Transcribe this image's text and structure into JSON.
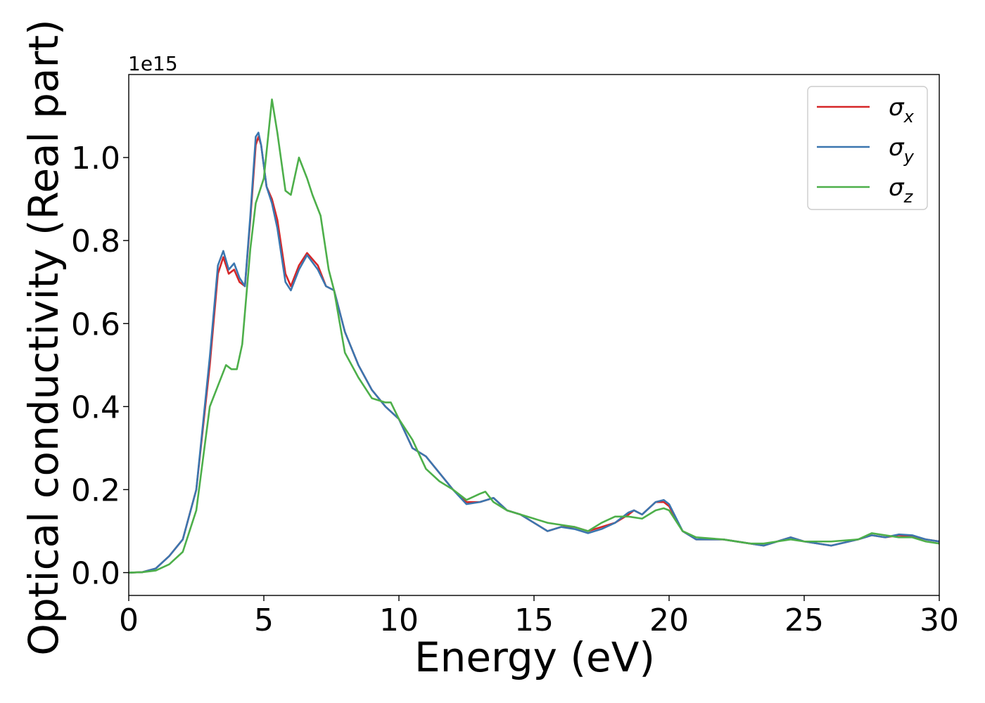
{
  "chart_data": {
    "type": "line",
    "title": "",
    "xlabel": "Energy (eV)",
    "ylabel": "Optical conductivity (Real part)",
    "y_offset_label": "1e15",
    "xlim": [
      0,
      30
    ],
    "ylim": [
      -0.055,
      1.2
    ],
    "xticks": [
      0,
      5,
      10,
      15,
      20,
      25,
      30
    ],
    "xtick_labels": [
      "0",
      "5",
      "10",
      "15",
      "20",
      "25",
      "30"
    ],
    "yticks": [
      0.0,
      0.2,
      0.4,
      0.6,
      0.8,
      1.0
    ],
    "ytick_labels": [
      "0.0",
      "0.2",
      "0.4",
      "0.6",
      "0.8",
      "1.0"
    ],
    "grid": false,
    "legend_position": "top-right",
    "series": [
      {
        "name": "σ_x",
        "label_base": "σ",
        "label_sub": "x",
        "color": "#d62728",
        "points": [
          [
            0,
            0
          ],
          [
            0.5,
            0.001
          ],
          [
            1,
            0.01
          ],
          [
            1.5,
            0.04
          ],
          [
            2,
            0.08
          ],
          [
            2.5,
            0.2
          ],
          [
            3,
            0.5
          ],
          [
            3.3,
            0.72
          ],
          [
            3.5,
            0.76
          ],
          [
            3.7,
            0.72
          ],
          [
            3.9,
            0.73
          ],
          [
            4.1,
            0.7
          ],
          [
            4.3,
            0.69
          ],
          [
            4.5,
            0.85
          ],
          [
            4.7,
            1.03
          ],
          [
            4.8,
            1.05
          ],
          [
            4.9,
            1.03
          ],
          [
            5.1,
            0.93
          ],
          [
            5.3,
            0.9
          ],
          [
            5.5,
            0.85
          ],
          [
            5.8,
            0.72
          ],
          [
            6,
            0.69
          ],
          [
            6.3,
            0.74
          ],
          [
            6.6,
            0.77
          ],
          [
            7,
            0.74
          ],
          [
            7.3,
            0.69
          ],
          [
            7.6,
            0.68
          ],
          [
            8,
            0.58
          ],
          [
            8.5,
            0.5
          ],
          [
            9,
            0.44
          ],
          [
            9.5,
            0.4
          ],
          [
            10,
            0.37
          ],
          [
            10.5,
            0.3
          ],
          [
            11,
            0.28
          ],
          [
            11.5,
            0.24
          ],
          [
            12,
            0.2
          ],
          [
            12.5,
            0.17
          ],
          [
            13,
            0.17
          ],
          [
            13.5,
            0.18
          ],
          [
            14,
            0.15
          ],
          [
            14.5,
            0.14
          ],
          [
            15,
            0.12
          ],
          [
            15.5,
            0.1
          ],
          [
            16,
            0.11
          ],
          [
            16.5,
            0.11
          ],
          [
            17,
            0.1
          ],
          [
            17.5,
            0.11
          ],
          [
            18,
            0.12
          ],
          [
            18.5,
            0.14
          ],
          [
            18.7,
            0.15
          ],
          [
            19,
            0.14
          ],
          [
            19.5,
            0.17
          ],
          [
            19.8,
            0.17
          ],
          [
            20,
            0.16
          ],
          [
            20.5,
            0.1
          ],
          [
            21,
            0.08
          ],
          [
            22,
            0.08
          ],
          [
            23,
            0.07
          ],
          [
            23.5,
            0.065
          ],
          [
            24,
            0.075
          ],
          [
            24.5,
            0.085
          ],
          [
            25,
            0.075
          ],
          [
            26,
            0.065
          ],
          [
            27,
            0.08
          ],
          [
            27.5,
            0.09
          ],
          [
            28,
            0.085
          ],
          [
            28.5,
            0.09
          ],
          [
            29,
            0.088
          ],
          [
            29.5,
            0.08
          ],
          [
            30,
            0.075
          ]
        ]
      },
      {
        "name": "σ_y",
        "label_base": "σ",
        "label_sub": "y",
        "color": "#3b76af",
        "points": [
          [
            0,
            0
          ],
          [
            0.5,
            0.001
          ],
          [
            1,
            0.01
          ],
          [
            1.5,
            0.04
          ],
          [
            2,
            0.08
          ],
          [
            2.5,
            0.2
          ],
          [
            3,
            0.52
          ],
          [
            3.3,
            0.74
          ],
          [
            3.5,
            0.775
          ],
          [
            3.7,
            0.73
          ],
          [
            3.9,
            0.745
          ],
          [
            4.1,
            0.71
          ],
          [
            4.3,
            0.69
          ],
          [
            4.5,
            0.86
          ],
          [
            4.7,
            1.05
          ],
          [
            4.8,
            1.06
          ],
          [
            4.9,
            1.03
          ],
          [
            5.1,
            0.93
          ],
          [
            5.3,
            0.89
          ],
          [
            5.5,
            0.83
          ],
          [
            5.8,
            0.7
          ],
          [
            6,
            0.68
          ],
          [
            6.3,
            0.73
          ],
          [
            6.6,
            0.765
          ],
          [
            7,
            0.73
          ],
          [
            7.3,
            0.69
          ],
          [
            7.6,
            0.68
          ],
          [
            8,
            0.58
          ],
          [
            8.5,
            0.5
          ],
          [
            9,
            0.44
          ],
          [
            9.5,
            0.4
          ],
          [
            10,
            0.37
          ],
          [
            10.5,
            0.3
          ],
          [
            11,
            0.28
          ],
          [
            11.5,
            0.24
          ],
          [
            12,
            0.2
          ],
          [
            12.5,
            0.165
          ],
          [
            13,
            0.17
          ],
          [
            13.5,
            0.18
          ],
          [
            14,
            0.15
          ],
          [
            14.5,
            0.14
          ],
          [
            15,
            0.12
          ],
          [
            15.5,
            0.1
          ],
          [
            16,
            0.11
          ],
          [
            16.5,
            0.105
          ],
          [
            17,
            0.095
          ],
          [
            17.5,
            0.105
          ],
          [
            18,
            0.12
          ],
          [
            18.5,
            0.145
          ],
          [
            18.7,
            0.15
          ],
          [
            19,
            0.14
          ],
          [
            19.5,
            0.17
          ],
          [
            19.8,
            0.175
          ],
          [
            20,
            0.165
          ],
          [
            20.5,
            0.1
          ],
          [
            21,
            0.08
          ],
          [
            22,
            0.08
          ],
          [
            23,
            0.07
          ],
          [
            23.5,
            0.065
          ],
          [
            24,
            0.075
          ],
          [
            24.5,
            0.085
          ],
          [
            25,
            0.075
          ],
          [
            26,
            0.065
          ],
          [
            27,
            0.08
          ],
          [
            27.5,
            0.09
          ],
          [
            28,
            0.085
          ],
          [
            28.5,
            0.092
          ],
          [
            29,
            0.09
          ],
          [
            29.5,
            0.08
          ],
          [
            30,
            0.075
          ]
        ]
      },
      {
        "name": "σ_z",
        "label_base": "σ",
        "label_sub": "z",
        "color": "#4daf4a",
        "points": [
          [
            0,
            0
          ],
          [
            0.5,
            0.001
          ],
          [
            1,
            0.005
          ],
          [
            1.5,
            0.02
          ],
          [
            2,
            0.05
          ],
          [
            2.5,
            0.15
          ],
          [
            3,
            0.4
          ],
          [
            3.3,
            0.45
          ],
          [
            3.6,
            0.5
          ],
          [
            3.8,
            0.49
          ],
          [
            4,
            0.49
          ],
          [
            4.2,
            0.55
          ],
          [
            4.5,
            0.78
          ],
          [
            4.7,
            0.89
          ],
          [
            5,
            0.95
          ],
          [
            5.3,
            1.14
          ],
          [
            5.5,
            1.06
          ],
          [
            5.8,
            0.92
          ],
          [
            6,
            0.91
          ],
          [
            6.3,
            1.0
          ],
          [
            6.6,
            0.95
          ],
          [
            6.8,
            0.91
          ],
          [
            7.1,
            0.86
          ],
          [
            7.4,
            0.73
          ],
          [
            7.6,
            0.68
          ],
          [
            8,
            0.53
          ],
          [
            8.5,
            0.47
          ],
          [
            9,
            0.42
          ],
          [
            9.5,
            0.41
          ],
          [
            9.7,
            0.41
          ],
          [
            10,
            0.37
          ],
          [
            10.5,
            0.32
          ],
          [
            11,
            0.25
          ],
          [
            11.5,
            0.22
          ],
          [
            12,
            0.2
          ],
          [
            12.5,
            0.175
          ],
          [
            13,
            0.19
          ],
          [
            13.2,
            0.195
          ],
          [
            13.5,
            0.17
          ],
          [
            14,
            0.15
          ],
          [
            14.5,
            0.14
          ],
          [
            15,
            0.13
          ],
          [
            15.5,
            0.12
          ],
          [
            16,
            0.115
          ],
          [
            16.5,
            0.11
          ],
          [
            17,
            0.1
          ],
          [
            17.5,
            0.12
          ],
          [
            18,
            0.135
          ],
          [
            18.5,
            0.135
          ],
          [
            19,
            0.13
          ],
          [
            19.5,
            0.15
          ],
          [
            19.8,
            0.155
          ],
          [
            20,
            0.15
          ],
          [
            20.5,
            0.1
          ],
          [
            21,
            0.085
          ],
          [
            22,
            0.08
          ],
          [
            23,
            0.07
          ],
          [
            23.5,
            0.07
          ],
          [
            24,
            0.075
          ],
          [
            24.5,
            0.08
          ],
          [
            25,
            0.075
          ],
          [
            25.5,
            0.075
          ],
          [
            26,
            0.075
          ],
          [
            27,
            0.08
          ],
          [
            27.5,
            0.095
          ],
          [
            28,
            0.09
          ],
          [
            28.5,
            0.085
          ],
          [
            29,
            0.085
          ],
          [
            29.5,
            0.075
          ],
          [
            30,
            0.07
          ]
        ]
      }
    ]
  }
}
